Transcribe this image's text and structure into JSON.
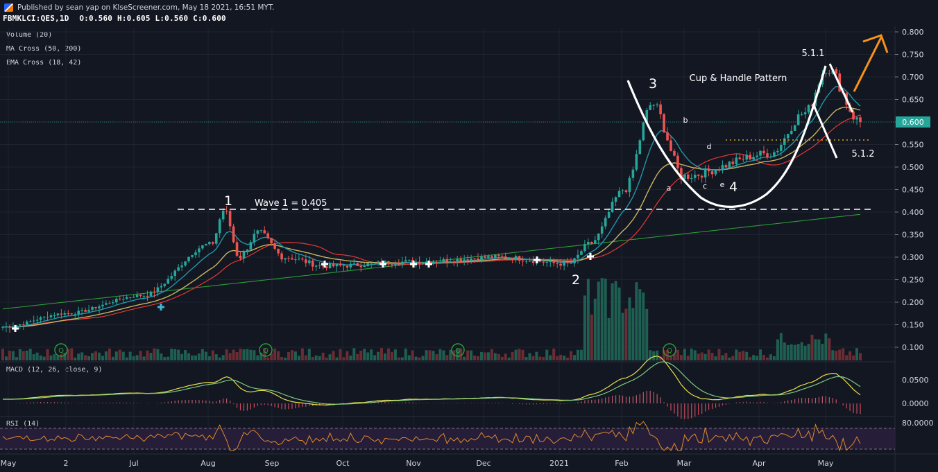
{
  "header": {
    "published": "Published by sean yap on KlseScreener.com, May 18 2021, 16:51 MYT.",
    "symbol": "FBMKLCI:QES,1D",
    "ohlc": "O:0.560 H:0.605 L:0.560 C:0.600"
  },
  "indicators": {
    "volume": "Volume (20)",
    "ma_cross": "MA Cross (50, 200)",
    "ema_cross": "EMA Cross (18, 42)",
    "macd": "MACD (12, 26, close, 9)",
    "rsi": "RSI (14)"
  },
  "annotations": {
    "wave1_num": "1",
    "wave1_text": "Wave 1 = 0.405",
    "wave2": "2",
    "wave3": "3",
    "wave4": "4",
    "wave511": "5.1.1",
    "wave512": "5.1.2",
    "pattern": "Cup & Handle Pattern",
    "sub_a": "a",
    "sub_b": "b",
    "sub_c": "c",
    "sub_d": "d",
    "sub_e": "e"
  },
  "colors": {
    "background": "#131722",
    "up": "#26a69a",
    "down": "#ef5350",
    "ema18": "#2196a8",
    "ema42": "#c8b560",
    "ma50": "#e53935",
    "ma200": "#2e9c3a",
    "arrow": "#f7931a",
    "last_price_tag": "#26a69a"
  },
  "chart_data": {
    "type": "candlestick",
    "x_axis_labels": [
      "May",
      "2",
      "Jul",
      "Aug",
      "Sep",
      "Oct",
      "Nov",
      "Dec",
      "2021",
      "Feb",
      "Mar",
      "Apr",
      "May"
    ],
    "price_axis": {
      "ticks": [
        "0.800",
        "0.750",
        "0.700",
        "0.650",
        "0.600",
        "0.550",
        "0.500",
        "0.450",
        "0.400",
        "0.350",
        "0.300",
        "0.250",
        "0.200",
        "0.150",
        "0.100"
      ],
      "last_price": "0.600",
      "range": [
        0.08,
        0.81
      ]
    },
    "macd_axis": {
      "ticks": [
        "0.0500",
        "0.0000"
      ]
    },
    "rsi_axis": {
      "ticks": [
        "80.0000"
      ]
    },
    "close_path": [
      [
        "May",
        0.145
      ],
      [
        "2",
        0.175
      ],
      [
        "Jul",
        0.215
      ],
      [
        "Aug",
        0.33
      ],
      [
        "Aug",
        0.405
      ],
      [
        "Aug",
        0.3
      ],
      [
        "Sep",
        0.355
      ],
      [
        "Sep",
        0.3
      ],
      [
        "Oct",
        0.28
      ],
      [
        "Nov",
        0.29
      ],
      [
        "Dec",
        0.3
      ],
      [
        "2021",
        0.285
      ],
      [
        "2021",
        0.33
      ],
      [
        "Feb",
        0.45
      ],
      [
        "Feb",
        0.64
      ],
      [
        "Mar",
        0.48
      ],
      [
        "Apr",
        0.53
      ],
      [
        "Apr",
        0.62
      ],
      [
        "May",
        0.72
      ],
      [
        "May",
        0.6
      ]
    ],
    "key_levels": {
      "wave1_line": 0.405,
      "handle_line": 0.56
    }
  }
}
